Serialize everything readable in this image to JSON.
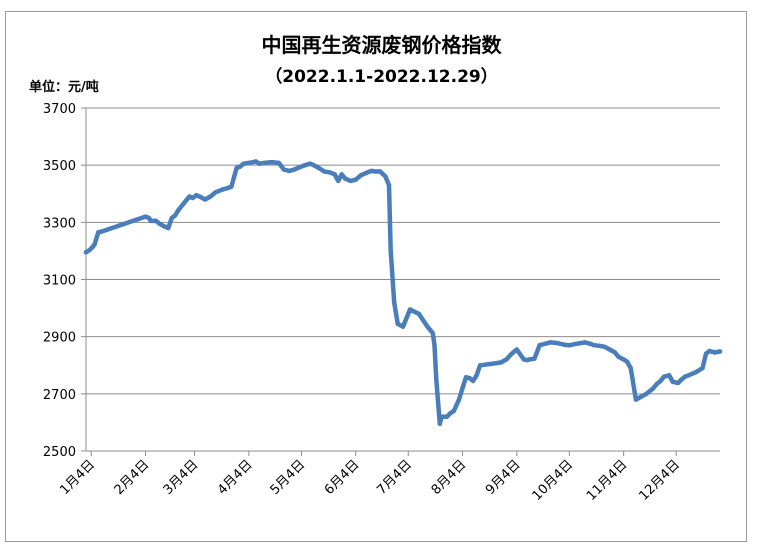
{
  "chart_data": {
    "type": "line",
    "title": "中国再生资源废钢价格指数",
    "subtitle": "（2022.1.1-2022.12.29）",
    "ylabel": "单位：元/吨",
    "xlabel": "",
    "ylim": [
      2500,
      3700
    ],
    "y_ticks": [
      2500,
      2700,
      2900,
      3100,
      3300,
      3500,
      3700
    ],
    "x_ticks": [
      "1月4日",
      "2月4日",
      "3月4日",
      "4月4日",
      "5月4日",
      "6月4日",
      "7月4日",
      "8月4日",
      "9月4日",
      "10月4日",
      "11月4日",
      "12月4日"
    ],
    "grid": "horizontal",
    "legend": "none",
    "line_color": "#4a7ebb",
    "series": [
      {
        "name": "",
        "x": [
          "2022-01-01",
          "2022-01-03",
          "2022-01-05",
          "2022-01-06",
          "2022-01-08",
          "2022-01-10",
          "2022-02-04",
          "2022-02-06",
          "2022-02-07",
          "2022-02-10",
          "2022-02-12",
          "2022-02-15",
          "2022-02-17",
          "2022-02-19",
          "2022-02-21",
          "2022-02-23",
          "2022-03-01",
          "2022-03-03",
          "2022-03-05",
          "2022-03-07",
          "2022-03-10",
          "2022-03-13",
          "2022-03-16",
          "2022-03-20",
          "2022-03-23",
          "2022-03-25",
          "2022-03-28",
          "2022-03-30",
          "2022-04-01",
          "2022-04-04",
          "2022-04-06",
          "2022-04-08",
          "2022-04-10",
          "2022-04-13",
          "2022-04-16",
          "2022-04-18",
          "2022-04-21",
          "2022-04-24",
          "2022-04-27",
          "2022-04-30",
          "2022-05-02",
          "2022-05-06",
          "2022-05-09",
          "2022-05-11",
          "2022-05-14",
          "2022-05-17",
          "2022-05-20",
          "2022-05-23",
          "2022-05-25",
          "2022-05-27",
          "2022-05-29",
          "2022-06-01",
          "2022-06-04",
          "2022-06-07",
          "2022-06-10",
          "2022-06-13",
          "2022-06-15",
          "2022-06-18",
          "2022-06-21",
          "2022-06-23",
          "2022-06-24",
          "2022-06-26",
          "2022-06-28",
          "2022-07-01",
          "2022-07-05",
          "2022-07-10",
          "2022-07-15",
          "2022-07-18",
          "2022-07-19",
          "2022-07-20",
          "2022-07-22",
          "2022-07-23",
          "2022-07-26",
          "2022-07-28",
          "2022-07-30",
          "2022-08-02",
          "2022-08-04",
          "2022-08-06",
          "2022-08-08",
          "2022-08-10",
          "2022-08-12",
          "2022-08-14",
          "2022-08-24",
          "2022-08-26",
          "2022-08-29",
          "2022-09-01",
          "2022-09-02",
          "2022-09-04",
          "2022-09-08",
          "2022-09-10",
          "2022-09-11",
          "2022-09-14",
          "2022-09-17",
          "2022-09-20",
          "2022-09-23",
          "2022-09-27",
          "2022-10-01",
          "2022-10-04",
          "2022-10-08",
          "2022-10-13",
          "2022-10-16",
          "2022-10-18",
          "2022-10-21",
          "2022-10-24",
          "2022-10-27",
          "2022-10-30",
          "2022-11-01",
          "2022-11-04",
          "2022-11-06",
          "2022-11-08",
          "2022-11-11",
          "2022-11-14",
          "2022-11-17",
          "2022-11-19",
          "2022-11-21",
          "2022-11-23",
          "2022-11-25",
          "2022-11-27",
          "2022-11-30",
          "2022-12-02",
          "2022-12-05",
          "2022-12-07",
          "2022-12-09",
          "2022-12-11",
          "2022-12-13",
          "2022-12-15",
          "2022-12-19",
          "2022-12-21",
          "2022-12-23",
          "2022-12-26",
          "2022-12-29"
        ],
        "values": [
          3195,
          3203,
          3215,
          3225,
          3265,
          3268,
          3320,
          3315,
          3305,
          3305,
          3295,
          3285,
          3280,
          3315,
          3325,
          3345,
          3390,
          3385,
          3395,
          3390,
          3380,
          3390,
          3405,
          3415,
          3420,
          3425,
          3490,
          3495,
          3505,
          3508,
          3510,
          3513,
          3505,
          3508,
          3510,
          3510,
          3508,
          3485,
          3480,
          3485,
          3490,
          3500,
          3505,
          3500,
          3490,
          3478,
          3475,
          3468,
          3445,
          3468,
          3453,
          3445,
          3449,
          3465,
          3473,
          3480,
          3478,
          3478,
          3460,
          3430,
          3200,
          3020,
          2945,
          2935,
          2995,
          2980,
          2935,
          2912,
          2870,
          2750,
          2595,
          2620,
          2620,
          2632,
          2640,
          2680,
          2720,
          2758,
          2755,
          2745,
          2765,
          2800,
          2808,
          2810,
          2820,
          2840,
          2845,
          2855,
          2820,
          2818,
          2820,
          2823,
          2870,
          2875,
          2880,
          2878,
          2872,
          2870,
          2875,
          2880,
          2875,
          2870,
          2868,
          2865,
          2855,
          2845,
          2830,
          2820,
          2812,
          2790,
          2680,
          2690,
          2700,
          2710,
          2720,
          2735,
          2745,
          2760,
          2765,
          2742,
          2738,
          2750,
          2760,
          2765,
          2770,
          2775,
          2790,
          2840,
          2850,
          2845,
          2848
        ]
      }
    ]
  }
}
